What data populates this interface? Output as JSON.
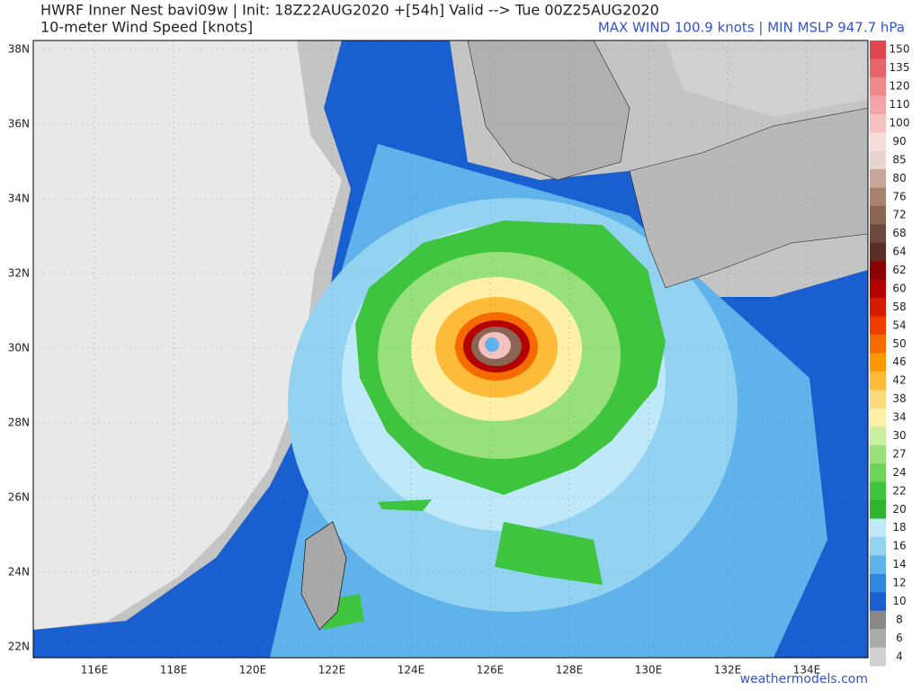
{
  "header": {
    "title": "HWRF Inner Nest  bavi09w | Init: 18Z22AUG2020 +[54h] Valid --> Tue 00Z25AUG2020",
    "subtitle": "10-meter Wind Speed [knots]",
    "stats": "MAX WIND 100.9 knots | MIN MSLP 947.7 hPa"
  },
  "axes": {
    "lat_labels": [
      "38N",
      "36N",
      "34N",
      "32N",
      "30N",
      "28N",
      "26N",
      "24N",
      "22N"
    ],
    "lon_labels": [
      "116E",
      "118E",
      "120E",
      "122E",
      "124E",
      "126E",
      "128E",
      "130E",
      "132E",
      "134E"
    ]
  },
  "colorbar": {
    "labels": [
      "150",
      "135",
      "120",
      "110",
      "100",
      "90",
      "85",
      "80",
      "76",
      "72",
      "68",
      "64",
      "62",
      "60",
      "58",
      "54",
      "50",
      "46",
      "42",
      "38",
      "34",
      "30",
      "27",
      "24",
      "22",
      "20",
      "18",
      "16",
      "14",
      "12",
      "10",
      "8",
      "6",
      "4"
    ],
    "colors": [
      "#e0474f",
      "#e8666b",
      "#ee8a8c",
      "#f2a5a6",
      "#f5c0c0",
      "#f7dcd8",
      "#e8d5cf",
      "#c7a79a",
      "#a8826f",
      "#8a6553",
      "#6e4a3c",
      "#5a2d22",
      "#8b0000",
      "#b30000",
      "#d61a00",
      "#f03c00",
      "#f56b00",
      "#fa9a00",
      "#fcbc3a",
      "#fdd97a",
      "#fff0a8",
      "#c9f0a0",
      "#98e07a",
      "#6fd45a",
      "#3ec43e",
      "#2fb52f",
      "#bfe8f8",
      "#94d2f2",
      "#5fb2ea",
      "#2f88dd",
      "#1a5fcf",
      "#888888",
      "#aaaaaa",
      "#d0d0d0"
    ]
  },
  "footer": {
    "credit": "weathermodels.com"
  }
}
